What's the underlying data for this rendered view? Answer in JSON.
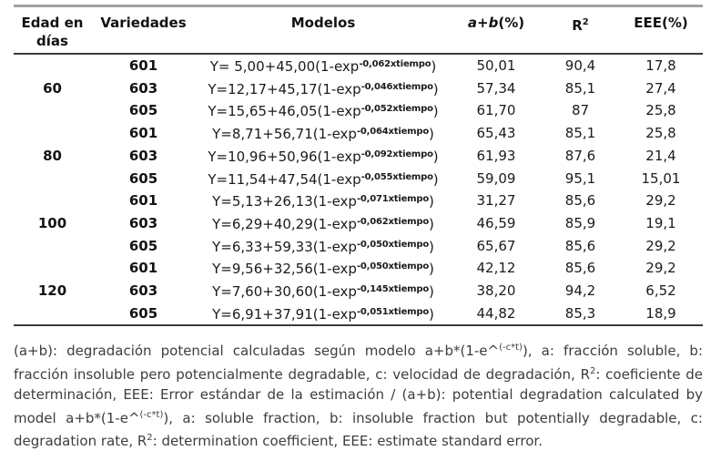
{
  "table": {
    "headers": {
      "edad": "Edad en días",
      "variedades": "Variedades",
      "modelos": "Modelos",
      "ab_italic": "a+b",
      "ab_rest": "(%)",
      "r2_base": "R",
      "r2_sup": "2",
      "eee": "EEE(%)"
    },
    "rows": [
      {
        "edad": "",
        "variedad": "601",
        "model_pre": "Y= 5,00+45,00(1-exp",
        "model_sup": "-0,062xtiempo",
        "model_post": ")",
        "ab": "50,01",
        "r2": "90,4",
        "eee": "17,8"
      },
      {
        "edad": "60",
        "variedad": "603",
        "model_pre": "Y=12,17+45,17(1-exp",
        "model_sup": "-0,046xtiempo",
        "model_post": ")",
        "ab": "57,34",
        "r2": "85,1",
        "eee": "27,4"
      },
      {
        "edad": "",
        "variedad": "605",
        "model_pre": "Y=15,65+46,05(1-exp",
        "model_sup": "-0,052xtiempo",
        "model_post": ")",
        "ab": "61,70",
        "r2": "87",
        "eee": "25,8"
      },
      {
        "edad": "",
        "variedad": "601",
        "model_pre": "Y=8,71+56,71(1-exp",
        "model_sup": "-0,064xtiempo",
        "model_post": ")",
        "ab": "65,43",
        "r2": "85,1",
        "eee": "25,8"
      },
      {
        "edad": "80",
        "variedad": "603",
        "model_pre": "Y=10,96+50,96(1-exp",
        "model_sup": "-0,092xtiempo",
        "model_post": ")",
        "ab": "61,93",
        "r2": "87,6",
        "eee": "21,4"
      },
      {
        "edad": "",
        "variedad": "605",
        "model_pre": "Y=11,54+47,54(1-exp",
        "model_sup": "-0,055xtiempo",
        "model_post": ")",
        "ab": "59,09",
        "r2": "95,1",
        "eee": "15,01"
      },
      {
        "edad": "",
        "variedad": "601",
        "model_pre": "Y=5,13+26,13(1-exp",
        "model_sup": "-0,071xtiempo",
        "model_post": ")",
        "ab": "31,27",
        "r2": "85,6",
        "eee": "29,2"
      },
      {
        "edad": "100",
        "variedad": "603",
        "model_pre": "Y=6,29+40,29(1-exp",
        "model_sup": "-0,062xtiempo",
        "model_post": ")",
        "ab": "46,59",
        "r2": "85,9",
        "eee": "19,1"
      },
      {
        "edad": "",
        "variedad": "605",
        "model_pre": "Y=6,33+59,33(1-exp",
        "model_sup": "-0,050xtiempo",
        "model_post": ")",
        "ab": "65,67",
        "r2": "85,6",
        "eee": "29,2"
      },
      {
        "edad": "",
        "variedad": "601",
        "model_pre": "Y=9,56+32,56(1-exp",
        "model_sup": "-0,050xtiempo",
        "model_post": ")",
        "ab": "42,12",
        "r2": "85,6",
        "eee": "29,2"
      },
      {
        "edad": "120",
        "variedad": "603",
        "model_pre": "Y=7,60+30,60(1-exp",
        "model_sup": "-0,145xtiempo",
        "model_post": ")",
        "ab": "38,20",
        "r2": "94,2",
        "eee": "6,52"
      },
      {
        "edad": "",
        "variedad": "605",
        "model_pre": "Y=6,91+37,91(1-exp",
        "model_sup": "-0,051xtiempo",
        "model_post": ")",
        "ab": "44,82",
        "r2": "85,3",
        "eee": "18,9"
      }
    ]
  },
  "footnote": {
    "segments": [
      {
        "text": "(a+b): degradación potencial calculadas según modelo a+b*(1-e^"
      },
      {
        "sup": "(-c*t)"
      },
      {
        "text": "), a: fracción soluble, b: fracción insoluble pero potencialmente degradable, c: velocidad de degradación, R"
      },
      {
        "sup": "2"
      },
      {
        "text": ": coeficiente de determinación, EEE: Error estándar de la estimación / (a+b): potential degradation calculated by model a+b*(1-e^"
      },
      {
        "sup": "(-c*t)"
      },
      {
        "text": "), a: soluble fraction, b: insoluble fraction but potentially degradable, c: degradation rate, R"
      },
      {
        "sup": "2"
      },
      {
        "text": ": determination coefficient, EEE: estimate standard error."
      }
    ]
  }
}
